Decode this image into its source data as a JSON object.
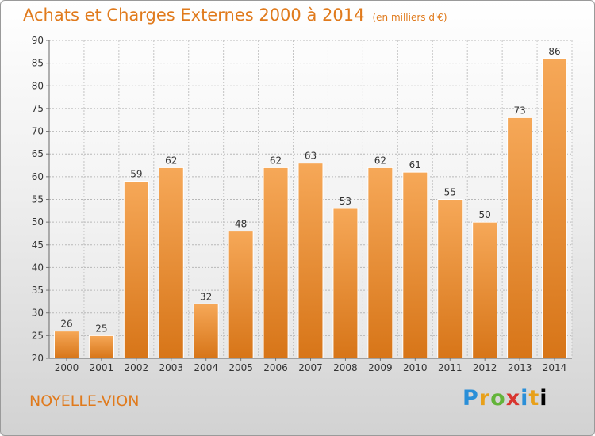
{
  "header": {
    "title": "Achats et Charges Externes 2000 à 2014",
    "unit": "(en milliers d'€)"
  },
  "footer": {
    "commune": "NOYELLE-VION",
    "logo": [
      "P",
      "r",
      "o",
      "x",
      "i",
      "t",
      "i"
    ]
  },
  "colors": {
    "accent": "#e07a1c",
    "bar_top": "#f6a858",
    "bar_bottom": "#d77518"
  },
  "chart_data": {
    "type": "bar",
    "title": "Achats et Charges Externes 2000 à 2014",
    "subtitle": "(en milliers d'€)",
    "categories": [
      "2000",
      "2001",
      "2002",
      "2003",
      "2004",
      "2005",
      "2006",
      "2007",
      "2008",
      "2009",
      "2010",
      "2011",
      "2012",
      "2013",
      "2014"
    ],
    "values": [
      26,
      25,
      59,
      62,
      32,
      48,
      62,
      63,
      53,
      62,
      61,
      55,
      50,
      73,
      86
    ],
    "ylim": [
      20,
      90
    ],
    "yticks": [
      20,
      25,
      30,
      35,
      40,
      45,
      50,
      55,
      60,
      65,
      70,
      75,
      80,
      85,
      90
    ],
    "grid": true
  }
}
